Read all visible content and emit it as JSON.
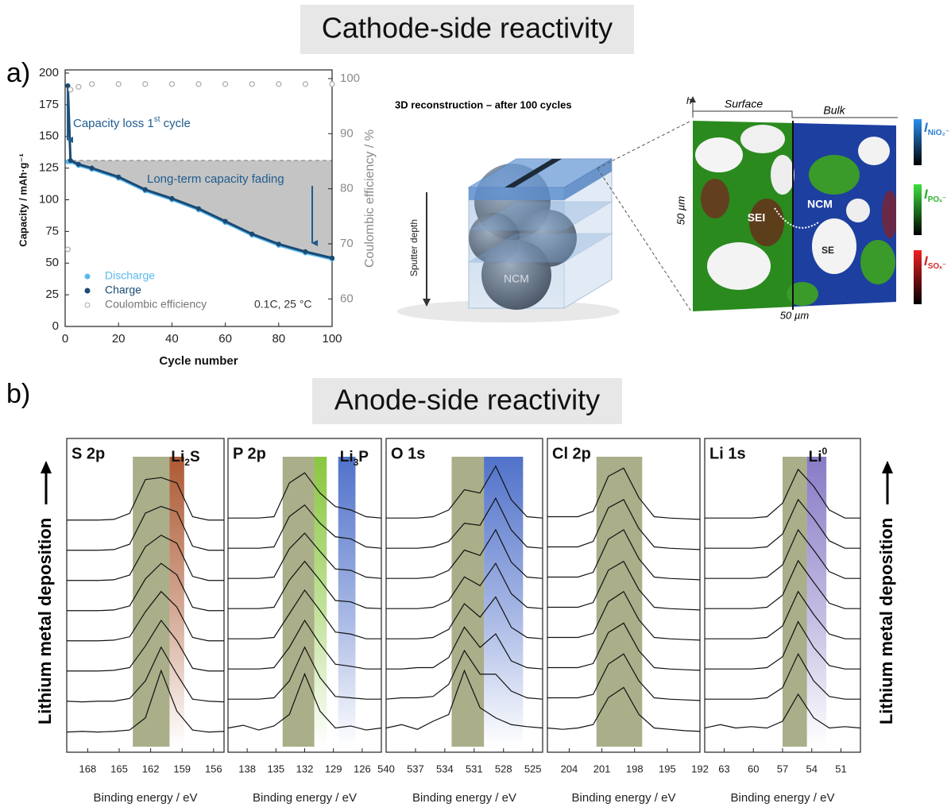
{
  "headers": {
    "cathode": "Cathode-side reactivity",
    "anode": "Anode-side reactivity",
    "panel_a": "a)",
    "panel_b": "b)",
    "deposition": "Lithium metal deposition"
  },
  "reconstruction": {
    "title": "3D reconstruction – after 100 cycles",
    "depth_label": "Sputter depth",
    "particle_label": "NCM"
  },
  "tof_map": {
    "axis_h": "h",
    "surface": "Surface",
    "bulk": "Bulk",
    "height": "50 µm",
    "width": "50 µm",
    "sei": "SEI",
    "ncm": "NCM",
    "se": "SE",
    "colorbar": [
      [
        "I",
        "NiO₂⁻"
      ],
      [
        "I",
        "POₓ⁻"
      ],
      [
        "I",
        "SOₓ⁻"
      ]
    ]
  },
  "chart_data": [
    {
      "type": "line",
      "x_label": "Cycle number",
      "y_label": "Capacity / mAh·g⁻¹",
      "y2_label": "Coulombic efficiency / %",
      "annotations": {
        "capacity_loss": [
          "Capacity loss 1",
          "st",
          " cycle"
        ],
        "fading": "Long-term capacity fading",
        "conditions": "0.1C, 25 °C"
      },
      "reference_line": 131,
      "x": [
        1,
        2,
        5,
        10,
        20,
        30,
        40,
        50,
        60,
        70,
        80,
        90,
        100
      ],
      "series": [
        {
          "name": "Discharge",
          "color": "#5bb8ee",
          "marker": "filled",
          "line": true,
          "values": [
            130,
            130,
            127,
            124,
            117,
            107,
            100,
            92,
            82,
            72,
            64,
            58,
            53
          ]
        },
        {
          "name": "Charge",
          "color": "#1a4a74",
          "marker": "filled",
          "line": true,
          "values": [
            190,
            131,
            128,
            125,
            118,
            108,
            101,
            93,
            83,
            73,
            65,
            59,
            54
          ]
        },
        {
          "name": "Coulombic efficiency",
          "color": "#a8a8a8",
          "marker": "open",
          "line": false,
          "axis": "y2",
          "values": [
            69,
            98,
            98.5,
            99,
            99,
            99,
            99,
            99,
            99,
            99,
            99,
            99,
            99
          ]
        }
      ],
      "xlim": [
        0,
        100
      ],
      "xticks": [
        0,
        20,
        40,
        60,
        80,
        100
      ],
      "ylim": [
        0,
        200
      ],
      "yticks": [
        0,
        25,
        50,
        75,
        100,
        125,
        150,
        175,
        200
      ],
      "y2lim": [
        55,
        101
      ],
      "y2ticks": [
        60,
        70,
        80,
        90,
        100
      ],
      "grid": false
    },
    {
      "type": "spectra",
      "label": "S 2p",
      "band_label": [
        "Li",
        "2",
        "S"
      ],
      "band_label_style": "sub",
      "x_label": "Binding energy / eV",
      "xlim": [
        170,
        155
      ],
      "xticks": [
        168,
        165,
        162,
        159,
        156
      ],
      "x": [
        170,
        168.5,
        167,
        165.5,
        164,
        162.5,
        161,
        159.5,
        158,
        156.5,
        155
      ],
      "bands": [
        {
          "from": 163.7,
          "to": 160.2,
          "color": "#959a6c",
          "fade": false
        },
        {
          "from": 160.2,
          "to": 158.8,
          "color": "#a4471c",
          "fade": true
        }
      ],
      "line_color": "#111",
      "series": [
        {
          "values": [
            0.04,
            0.05,
            0.04,
            0.05,
            0.07,
            0.25,
            0.95,
            0.35,
            0.07,
            0.04,
            0.05
          ]
        },
        {
          "values": [
            0.05,
            0.04,
            0.05,
            0.05,
            0.09,
            0.35,
            0.85,
            0.45,
            0.08,
            0.05,
            0.04
          ]
        },
        {
          "values": [
            0.05,
            0.05,
            0.05,
            0.06,
            0.1,
            0.42,
            0.8,
            0.5,
            0.09,
            0.05,
            0.05
          ]
        },
        {
          "values": [
            0.05,
            0.05,
            0.05,
            0.06,
            0.11,
            0.48,
            0.78,
            0.55,
            0.1,
            0.05,
            0.05
          ]
        },
        {
          "values": [
            0.05,
            0.05,
            0.05,
            0.06,
            0.12,
            0.52,
            0.75,
            0.58,
            0.1,
            0.05,
            0.05
          ]
        },
        {
          "values": [
            0.05,
            0.05,
            0.05,
            0.06,
            0.13,
            0.55,
            0.72,
            0.6,
            0.11,
            0.05,
            0.05
          ]
        },
        {
          "values": [
            0.05,
            0.05,
            0.05,
            0.06,
            0.14,
            0.6,
            0.7,
            0.62,
            0.11,
            0.05,
            0.05
          ]
        },
        {
          "values": [
            0.05,
            0.05,
            0.05,
            0.06,
            0.15,
            0.65,
            0.68,
            0.6,
            0.1,
            0.05,
            0.05
          ]
        }
      ]
    },
    {
      "type": "spectra",
      "label": "P 2p",
      "band_label": [
        "Li",
        "3",
        "P"
      ],
      "band_label_style": "sub",
      "x_label": "Binding energy / eV",
      "xlim": [
        140,
        124
      ],
      "xticks": [
        138,
        135,
        132,
        129,
        126
      ],
      "x": [
        140,
        138.4,
        136.8,
        135.2,
        133.6,
        132,
        130.4,
        128.8,
        127.2,
        125.6,
        124
      ],
      "bands": [
        {
          "from": 134.3,
          "to": 131,
          "color": "#959a6c",
          "fade": false
        },
        {
          "from": 131,
          "to": 129.7,
          "color": "#7cc02a",
          "fade": true
        },
        {
          "from": 128.5,
          "to": 126.7,
          "color": "#3d62c4",
          "fade": true
        }
      ],
      "line_color": "#111",
      "series": [
        {
          "values": [
            0.1,
            0.14,
            0.07,
            0.13,
            0.3,
            0.9,
            0.35,
            0.1,
            0.13,
            0.07,
            0.1
          ]
        },
        {
          "values": [
            0.08,
            0.08,
            0.08,
            0.1,
            0.35,
            0.85,
            0.4,
            0.12,
            0.1,
            0.08,
            0.08
          ]
        },
        {
          "values": [
            0.08,
            0.08,
            0.08,
            0.1,
            0.4,
            0.8,
            0.45,
            0.15,
            0.12,
            0.08,
            0.08
          ]
        },
        {
          "values": [
            0.08,
            0.08,
            0.08,
            0.1,
            0.45,
            0.8,
            0.5,
            0.18,
            0.15,
            0.08,
            0.08
          ]
        },
        {
          "values": [
            0.08,
            0.08,
            0.08,
            0.1,
            0.5,
            0.78,
            0.5,
            0.2,
            0.18,
            0.09,
            0.08
          ]
        },
        {
          "values": [
            0.08,
            0.08,
            0.08,
            0.1,
            0.52,
            0.75,
            0.48,
            0.22,
            0.2,
            0.1,
            0.08
          ]
        },
        {
          "values": [
            0.08,
            0.08,
            0.08,
            0.1,
            0.55,
            0.72,
            0.45,
            0.25,
            0.22,
            0.1,
            0.08
          ]
        },
        {
          "values": [
            0.08,
            0.08,
            0.08,
            0.1,
            0.6,
            0.75,
            0.45,
            0.25,
            0.2,
            0.1,
            0.08
          ]
        }
      ]
    },
    {
      "type": "spectra",
      "label": "O 1s",
      "x_label": "Binding energy / eV",
      "xlim": [
        540,
        524
      ],
      "xticks": [
        540,
        537,
        534,
        531,
        528,
        525
      ],
      "x": [
        540,
        538.4,
        536.8,
        535.2,
        533.6,
        532,
        530.4,
        528.8,
        527.2,
        525.6,
        524
      ],
      "bands": [
        {
          "from": 533.3,
          "to": 530,
          "color": "#959a6c",
          "fade": false
        },
        {
          "from": 530,
          "to": 526,
          "color": "#3d62c4",
          "fade": true
        }
      ],
      "line_color": "#111",
      "series": [
        {
          "values": [
            0.1,
            0.15,
            0.08,
            0.2,
            0.3,
            0.95,
            0.4,
            0.25,
            0.15,
            0.12,
            0.1
          ]
        },
        {
          "values": [
            0.08,
            0.1,
            0.1,
            0.12,
            0.3,
            0.8,
            0.45,
            0.45,
            0.2,
            0.1,
            0.08
          ]
        },
        {
          "values": [
            0.08,
            0.08,
            0.1,
            0.1,
            0.25,
            0.7,
            0.4,
            0.6,
            0.2,
            0.1,
            0.08
          ]
        },
        {
          "values": [
            0.08,
            0.08,
            0.08,
            0.1,
            0.22,
            0.6,
            0.4,
            0.7,
            0.25,
            0.1,
            0.08
          ]
        },
        {
          "values": [
            0.08,
            0.08,
            0.08,
            0.1,
            0.2,
            0.55,
            0.42,
            0.75,
            0.3,
            0.1,
            0.08
          ]
        },
        {
          "values": [
            0.08,
            0.08,
            0.08,
            0.1,
            0.2,
            0.5,
            0.42,
            0.8,
            0.32,
            0.1,
            0.08
          ]
        },
        {
          "values": [
            0.08,
            0.08,
            0.08,
            0.1,
            0.18,
            0.45,
            0.42,
            0.82,
            0.35,
            0.1,
            0.08
          ]
        },
        {
          "values": [
            0.08,
            0.08,
            0.08,
            0.1,
            0.2,
            0.5,
            0.45,
            0.85,
            0.35,
            0.1,
            0.08
          ]
        }
      ]
    },
    {
      "type": "spectra",
      "label": "Cl 2p",
      "x_label": "Binding energy / eV",
      "xlim": [
        206,
        192
      ],
      "xticks": [
        204,
        201,
        198,
        195,
        192
      ],
      "x": [
        206,
        204.6,
        203.2,
        201.8,
        200.4,
        199,
        197.6,
        196.2,
        194.8,
        193.4,
        192
      ],
      "bands": [
        {
          "from": 201.5,
          "to": 197.3,
          "color": "#959a6c",
          "fade": false
        }
      ],
      "line_color": "#111",
      "series": [
        {
          "values": [
            0.1,
            0.08,
            0.1,
            0.15,
            0.55,
            0.7,
            0.3,
            0.1,
            0.08,
            0.06,
            0.05
          ]
        },
        {
          "values": [
            0.1,
            0.1,
            0.1,
            0.15,
            0.6,
            0.75,
            0.35,
            0.1,
            0.08,
            0.07,
            0.06
          ]
        },
        {
          "values": [
            0.1,
            0.1,
            0.1,
            0.16,
            0.62,
            0.76,
            0.35,
            0.1,
            0.08,
            0.07,
            0.06
          ]
        },
        {
          "values": [
            0.1,
            0.1,
            0.1,
            0.16,
            0.63,
            0.78,
            0.36,
            0.1,
            0.08,
            0.07,
            0.06
          ]
        },
        {
          "values": [
            0.1,
            0.1,
            0.1,
            0.17,
            0.65,
            0.78,
            0.36,
            0.1,
            0.08,
            0.07,
            0.06
          ]
        },
        {
          "values": [
            0.1,
            0.1,
            0.1,
            0.17,
            0.66,
            0.8,
            0.37,
            0.1,
            0.08,
            0.07,
            0.06
          ]
        },
        {
          "values": [
            0.1,
            0.1,
            0.1,
            0.18,
            0.68,
            0.8,
            0.37,
            0.1,
            0.08,
            0.07,
            0.06
          ]
        },
        {
          "values": [
            0.1,
            0.1,
            0.1,
            0.18,
            0.7,
            0.82,
            0.38,
            0.1,
            0.08,
            0.07,
            0.06
          ]
        }
      ]
    },
    {
      "type": "spectra",
      "label": "Li 1s",
      "band_label": [
        "Li",
        "0"
      ],
      "band_label_style": "sup",
      "x_label": "Binding energy / eV",
      "xlim": [
        65,
        49
      ],
      "xticks": [
        63,
        60,
        57,
        54,
        51
      ],
      "x": [
        65,
        63.4,
        61.8,
        60.2,
        58.6,
        57,
        55.4,
        53.8,
        52.2,
        50.6,
        49
      ],
      "bands": [
        {
          "from": 57,
          "to": 54.5,
          "color": "#959a6c",
          "fade": false
        },
        {
          "from": 54.5,
          "to": 52.5,
          "color": "#7b6cc0",
          "fade": true
        }
      ],
      "line_color": "#111",
      "series": [
        {
          "values": [
            0.1,
            0.15,
            0.1,
            0.12,
            0.1,
            0.2,
            0.6,
            0.25,
            0.1,
            0.12,
            0.1
          ]
        },
        {
          "values": [
            0.08,
            0.08,
            0.08,
            0.08,
            0.1,
            0.25,
            0.75,
            0.35,
            0.12,
            0.08,
            0.08
          ]
        },
        {
          "values": [
            0.08,
            0.08,
            0.08,
            0.08,
            0.1,
            0.26,
            0.78,
            0.4,
            0.13,
            0.08,
            0.08
          ]
        },
        {
          "values": [
            0.08,
            0.08,
            0.08,
            0.08,
            0.1,
            0.27,
            0.78,
            0.44,
            0.15,
            0.08,
            0.08
          ]
        },
        {
          "values": [
            0.08,
            0.08,
            0.08,
            0.08,
            0.1,
            0.28,
            0.79,
            0.47,
            0.16,
            0.08,
            0.08
          ]
        },
        {
          "values": [
            0.08,
            0.08,
            0.08,
            0.08,
            0.1,
            0.28,
            0.8,
            0.5,
            0.18,
            0.08,
            0.08
          ]
        },
        {
          "values": [
            0.08,
            0.08,
            0.08,
            0.08,
            0.1,
            0.29,
            0.8,
            0.52,
            0.19,
            0.08,
            0.08
          ]
        },
        {
          "values": [
            0.08,
            0.08,
            0.08,
            0.08,
            0.1,
            0.3,
            0.8,
            0.55,
            0.2,
            0.08,
            0.08
          ]
        }
      ]
    }
  ]
}
